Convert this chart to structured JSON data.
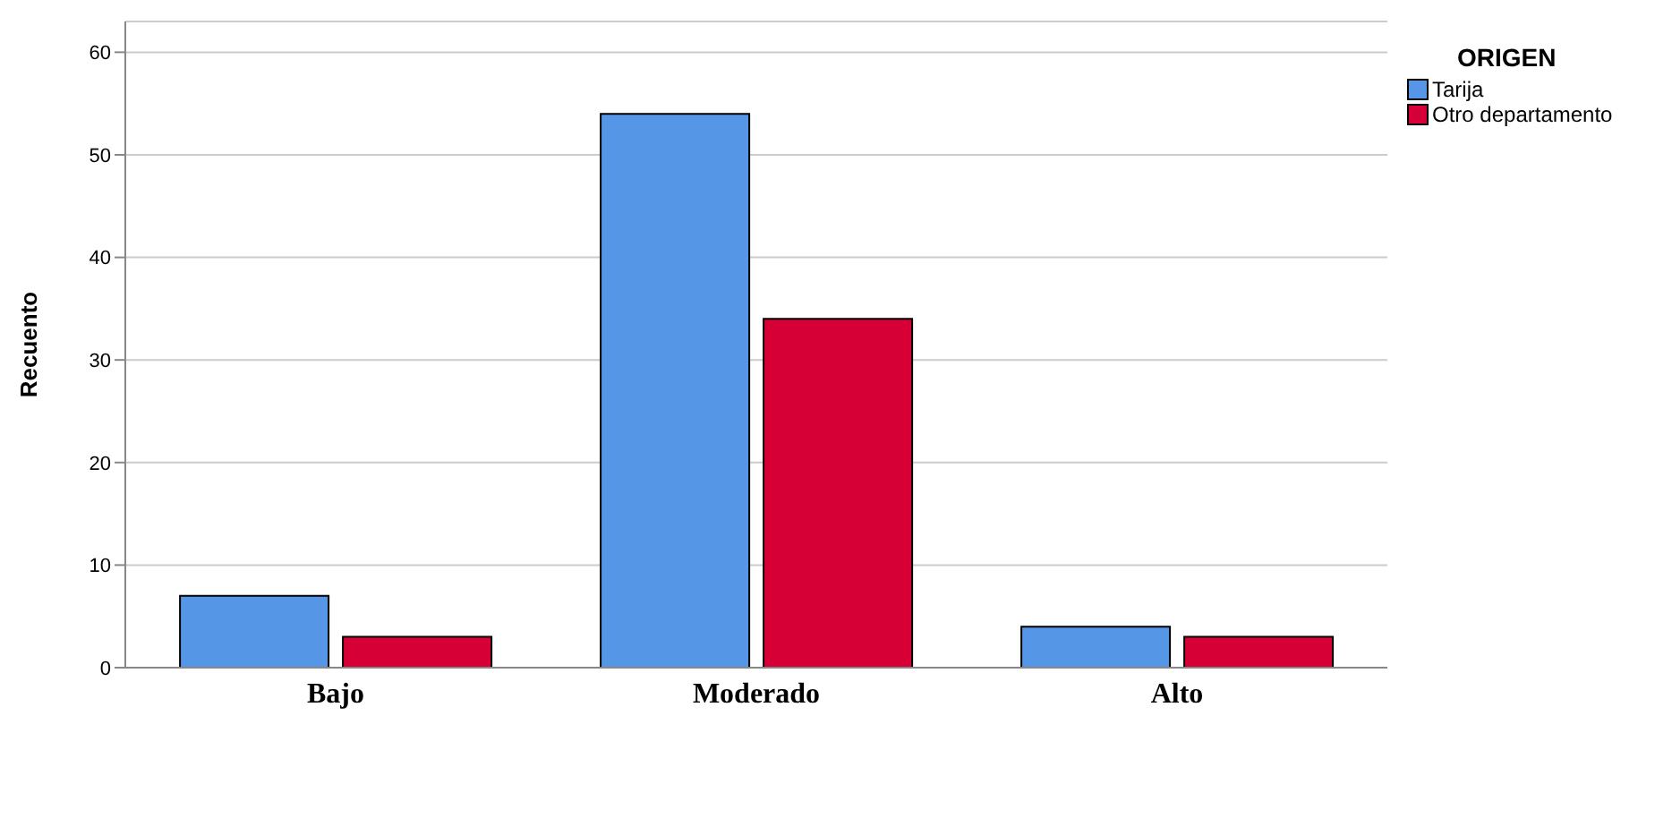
{
  "chart_data": {
    "type": "bar",
    "ylabel": "Recuento",
    "legend_title": "ORIGEN",
    "categories": [
      "Bajo",
      "Moderado",
      "Alto"
    ],
    "series": [
      {
        "name": "Tarija",
        "color": "#5596e6",
        "values": [
          7,
          54,
          4
        ]
      },
      {
        "name": "Otro departamento",
        "color": "#d60036",
        "values": [
          3,
          34,
          3
        ]
      }
    ],
    "ylim": [
      0,
      63
    ],
    "yticks": [
      0,
      10,
      20,
      30,
      40,
      50,
      60
    ],
    "grid": "y",
    "legend": "top right"
  }
}
